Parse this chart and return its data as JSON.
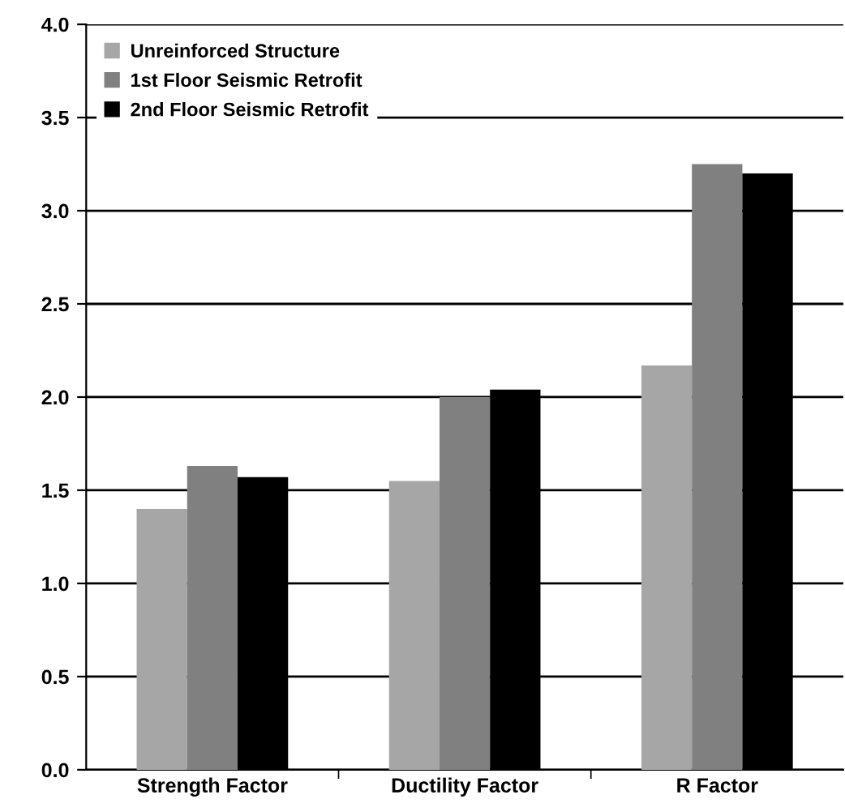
{
  "chart_data": {
    "type": "bar",
    "categories": [
      "Strength Factor",
      "Ductility Factor",
      "R Factor"
    ],
    "series": [
      {
        "name": "Unreinforced Structure",
        "color": "#a6a6a6",
        "values": [
          1.4,
          1.55,
          2.17
        ]
      },
      {
        "name": "1st Floor Seismic Retrofit",
        "color": "#808080",
        "values": [
          1.63,
          2.0,
          3.25
        ]
      },
      {
        "name": "2nd Floor Seismic Retrofit",
        "color": "#000000",
        "values": [
          1.57,
          2.04,
          3.2
        ]
      }
    ],
    "ylim": [
      0,
      4.0
    ],
    "yticks": [
      {
        "value": 0,
        "label": "0.0"
      },
      0.5,
      {
        "value": 1,
        "label": "1.0"
      },
      1.5,
      {
        "value": 2,
        "label": "2.0"
      },
      2.5,
      {
        "value": 3,
        "label": "3.0"
      },
      3.5,
      {
        "value": 4,
        "label": "4.0"
      }
    ],
    "grid": "y",
    "legend": "top left"
  }
}
